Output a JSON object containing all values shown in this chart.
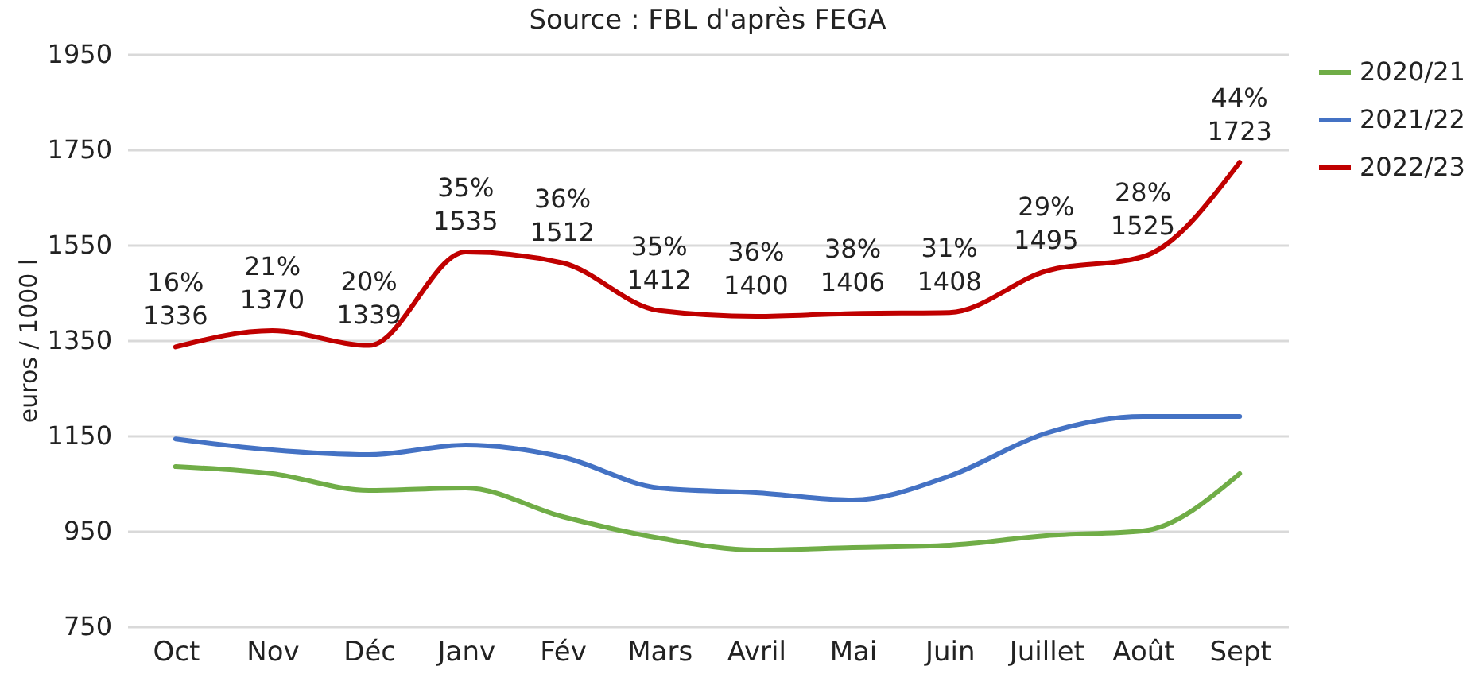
{
  "chart_data": {
    "type": "line",
    "title": "Source : FBL d'après FEGA",
    "ylabel": "euros / 1000 l",
    "categories": [
      "Oct",
      "Nov",
      "Déc",
      "Janv",
      "Fév",
      "Mars",
      "Avril",
      "Mai",
      "Juin",
      "Juillet",
      "Août",
      "Sept"
    ],
    "series": [
      {
        "name": "2020/21",
        "color": "#70ad47",
        "values": [
          1085,
          1070,
          1035,
          1040,
          980,
          935,
          910,
          915,
          920,
          940,
          950,
          1070
        ]
      },
      {
        "name": "2021/22",
        "color": "#4472c4",
        "values": [
          1143,
          1120,
          1110,
          1130,
          1105,
          1040,
          1030,
          1015,
          1065,
          1155,
          1190,
          1190
        ]
      },
      {
        "name": "2022/23",
        "color": "#c00000",
        "values": [
          1336,
          1370,
          1339,
          1535,
          1512,
          1412,
          1400,
          1406,
          1408,
          1495,
          1525,
          1723
        ],
        "value_labels": [
          "16%\n1336",
          "21%\n1370",
          "20%\n1339",
          "35%\n1535",
          "36%\n1512",
          "35%\n1412",
          "36%\n1400",
          "38%\n1406",
          "31%\n1408",
          "29%\n1495",
          "28%\n1525",
          "44%\n1723"
        ]
      }
    ],
    "ylim": [
      750,
      1950
    ],
    "yticks": [
      750,
      950,
      1150,
      1350,
      1550,
      1750,
      1950
    ],
    "grid": "y",
    "legend": "right",
    "line_style": "solid",
    "marker": "none"
  }
}
